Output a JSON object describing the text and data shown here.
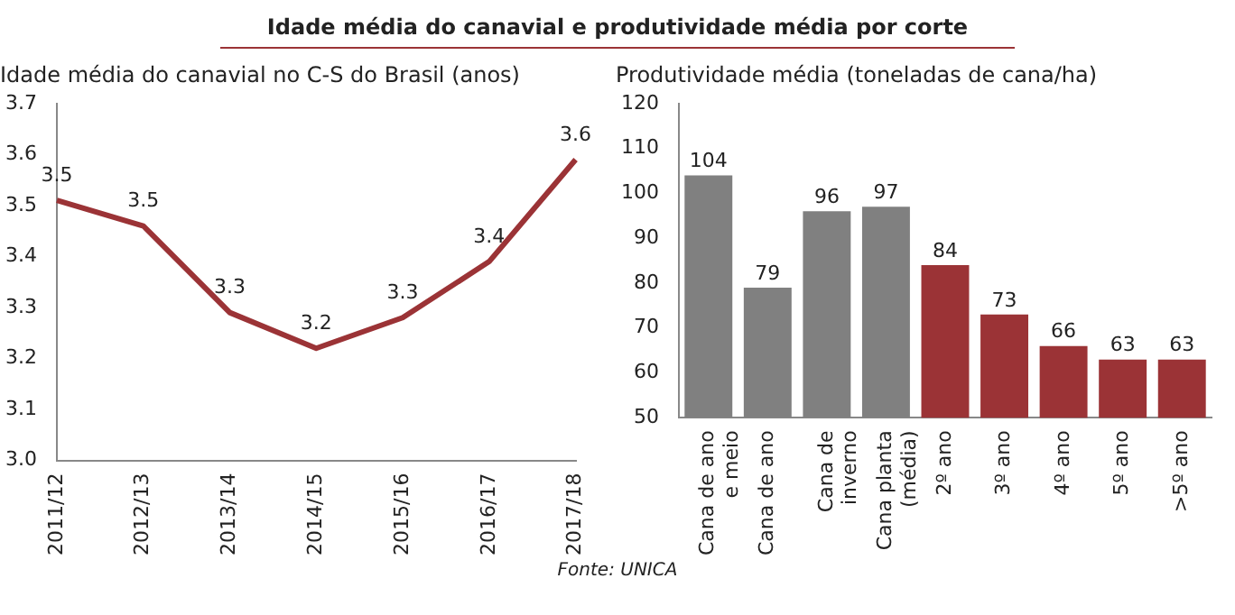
{
  "chart_data": [
    {
      "type": "line",
      "title": "Idade média do canavial e produtividade média por corte",
      "ylabel": "Idade média do canavial no C-S do Brasil (anos)",
      "categories": [
        "2011/12",
        "2012/13",
        "2013/14",
        "2014/15",
        "2015/16",
        "2016/17",
        "2017/18"
      ],
      "series": [
        {
          "color": "#9b3336",
          "values": [
            3.51,
            3.46,
            3.29,
            3.22,
            3.28,
            3.39,
            3.59
          ],
          "value_labels": [
            "3.5",
            "3.5",
            "3.3",
            "3.2",
            "3.3",
            "3.4",
            "3.6"
          ]
        }
      ],
      "ylim": [
        3.0,
        3.7
      ],
      "yticks": [
        {
          "value": 3.0,
          "label": "3.0"
        },
        3.1,
        3.2,
        3.3,
        3.4,
        3.5,
        3.6,
        3.7
      ],
      "grid": false,
      "legend": false,
      "marker": "none",
      "line_style": "solid"
    },
    {
      "type": "bar",
      "ylabel": "Produtividade média (toneladas de cana/ha)",
      "categories": [
        "Cana de ano e meio",
        "Cana de ano",
        "Cana de inverno",
        "Cana planta (média)",
        "2º ano",
        "3º ano",
        "4º ano",
        "5º ano",
        ">5º ano"
      ],
      "values": [
        104,
        79,
        96,
        97,
        84,
        73,
        66,
        63,
        63
      ],
      "colors": [
        "#808080",
        "#808080",
        "#808080",
        "#808080",
        "#9b3336",
        "#9b3336",
        "#9b3336",
        "#9b3336",
        "#9b3336"
      ],
      "ylim": [
        50,
        120
      ],
      "yticks": [
        50,
        60,
        70,
        80,
        90,
        100,
        110,
        120
      ],
      "grid": false,
      "legend": false,
      "data_labels": true,
      "annotations": [
        "Fonte: UNICA"
      ]
    }
  ]
}
